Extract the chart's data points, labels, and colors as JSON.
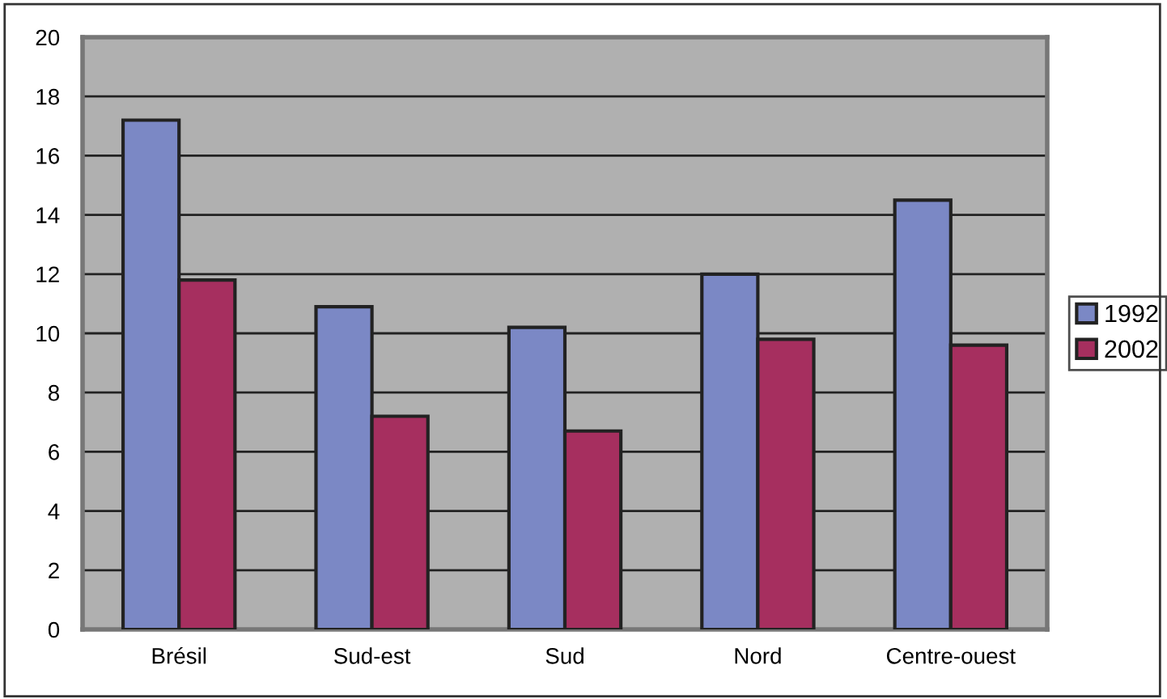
{
  "chart_data": {
    "type": "bar",
    "categories": [
      "Brésil",
      "Sud-est",
      "Sud",
      "Nord",
      "Centre-ouest"
    ],
    "series": [
      {
        "name": "1992",
        "color": "#7b88c5",
        "values": [
          17.2,
          10.9,
          10.2,
          12.0,
          14.5
        ]
      },
      {
        "name": "2002",
        "color": "#a62f5f",
        "values": [
          11.8,
          7.2,
          6.7,
          9.8,
          9.6
        ]
      }
    ],
    "ylim": [
      0,
      20
    ],
    "yticks": [
      0,
      2,
      4,
      6,
      8,
      10,
      12,
      14,
      16,
      18,
      20
    ],
    "grid": "y",
    "legend": "right"
  }
}
